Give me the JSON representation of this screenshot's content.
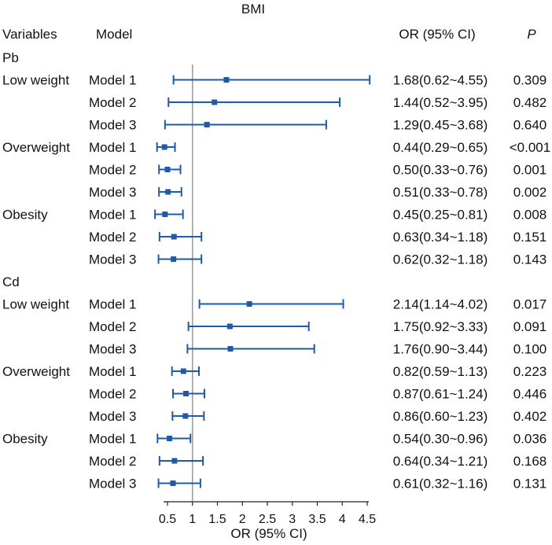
{
  "chart_data": {
    "type": "forest",
    "title": "BMI",
    "headers": {
      "variables": "Variables",
      "model": "Model",
      "or": "OR (95% CI)",
      "p": "P"
    },
    "xlabel": "OR (95% CI)",
    "xlim": [
      0.5,
      4.5
    ],
    "xticks": [
      0.5,
      1,
      1.5,
      2,
      2.5,
      3,
      3.5,
      4,
      4.5
    ],
    "xtick_labels": [
      "0.5",
      "1",
      "1.5",
      "2",
      "2.5",
      "3",
      "3.5",
      "4",
      "4.5"
    ],
    "reference_line": 1,
    "colors": {
      "marker": "#1f5aa6",
      "reference": "#9a9a9a",
      "axis": "#222222"
    },
    "groups": [
      {
        "name": "Pb",
        "subgroups": [
          {
            "name": "Low weight",
            "rows": [
              {
                "model": "Model 1",
                "or": 1.68,
                "lo": 0.62,
                "hi": 4.55,
                "text": "1.68(0.62~4.55)",
                "p": "0.309"
              },
              {
                "model": "Model 2",
                "or": 1.44,
                "lo": 0.52,
                "hi": 3.95,
                "text": "1.44(0.52~3.95)",
                "p": "0.482"
              },
              {
                "model": "Model 3",
                "or": 1.29,
                "lo": 0.45,
                "hi": 3.68,
                "text": "1.29(0.45~3.68)",
                "p": "0.640"
              }
            ]
          },
          {
            "name": "Overweight",
            "rows": [
              {
                "model": "Model 1",
                "or": 0.44,
                "lo": 0.29,
                "hi": 0.65,
                "text": "0.44(0.29~0.65)",
                "p": "<0.001"
              },
              {
                "model": "Model 2",
                "or": 0.5,
                "lo": 0.33,
                "hi": 0.76,
                "text": "0.50(0.33~0.76)",
                "p": "0.001"
              },
              {
                "model": "Model 3",
                "or": 0.51,
                "lo": 0.33,
                "hi": 0.78,
                "text": "0.51(0.33~0.78)",
                "p": "0.002"
              }
            ]
          },
          {
            "name": "Obesity",
            "rows": [
              {
                "model": "Model 1",
                "or": 0.45,
                "lo": 0.25,
                "hi": 0.81,
                "text": "0.45(0.25~0.81)",
                "p": "0.008"
              },
              {
                "model": "Model 2",
                "or": 0.63,
                "lo": 0.34,
                "hi": 1.18,
                "text": "0.63(0.34~1.18)",
                "p": "0.151"
              },
              {
                "model": "Model 3",
                "or": 0.62,
                "lo": 0.32,
                "hi": 1.18,
                "text": "0.62(0.32~1.18)",
                "p": "0.143"
              }
            ]
          }
        ]
      },
      {
        "name": "Cd",
        "subgroups": [
          {
            "name": "Low weight",
            "rows": [
              {
                "model": "Model 1",
                "or": 2.14,
                "lo": 1.14,
                "hi": 4.02,
                "text": "2.14(1.14~4.02)",
                "p": "0.017"
              },
              {
                "model": "Model 2",
                "or": 1.75,
                "lo": 0.92,
                "hi": 3.33,
                "text": "1.75(0.92~3.33)",
                "p": "0.091"
              },
              {
                "model": "Model 3",
                "or": 1.76,
                "lo": 0.9,
                "hi": 3.44,
                "text": "1.76(0.90~3.44)",
                "p": "0.100"
              }
            ]
          },
          {
            "name": "Overweight",
            "rows": [
              {
                "model": "Model 1",
                "or": 0.82,
                "lo": 0.59,
                "hi": 1.13,
                "text": "0.82(0.59~1.13)",
                "p": "0.223"
              },
              {
                "model": "Model 2",
                "or": 0.87,
                "lo": 0.61,
                "hi": 1.24,
                "text": "0.87(0.61~1.24)",
                "p": "0.446"
              },
              {
                "model": "Model 3",
                "or": 0.86,
                "lo": 0.6,
                "hi": 1.23,
                "text": "0.86(0.60~1.23)",
                "p": "0.402"
              }
            ]
          },
          {
            "name": "Obesity",
            "rows": [
              {
                "model": "Model 1",
                "or": 0.54,
                "lo": 0.3,
                "hi": 0.96,
                "text": "0.54(0.30~0.96)",
                "p": "0.036"
              },
              {
                "model": "Model 2",
                "or": 0.64,
                "lo": 0.34,
                "hi": 1.21,
                "text": "0.64(0.34~1.21)",
                "p": "0.168"
              },
              {
                "model": "Model 3",
                "or": 0.61,
                "lo": 0.32,
                "hi": 1.16,
                "text": "0.61(0.32~1.16)",
                "p": "0.131"
              }
            ]
          }
        ]
      }
    ]
  }
}
